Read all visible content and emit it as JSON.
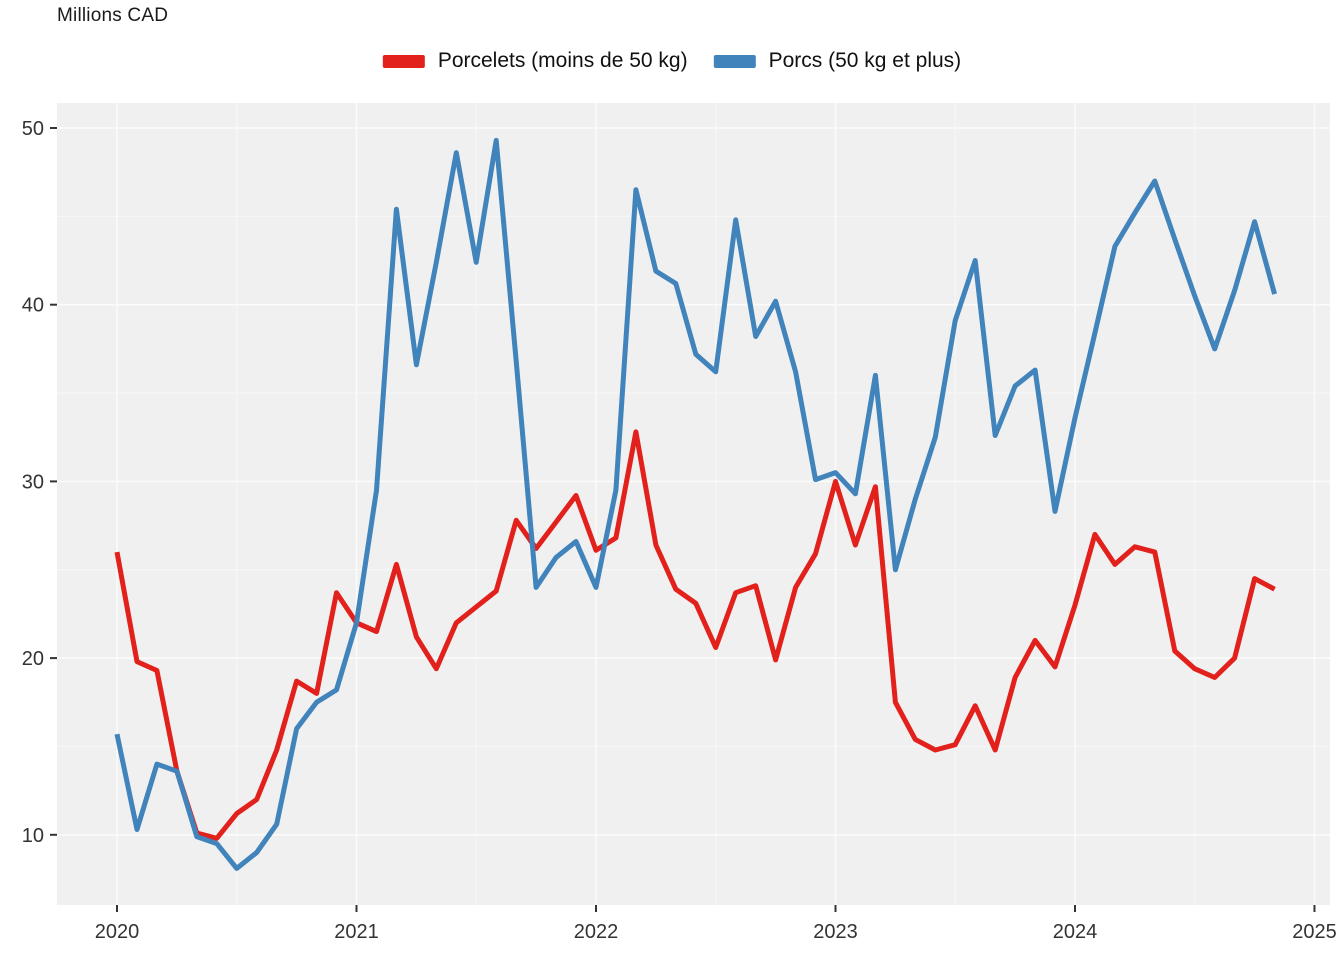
{
  "title": "Millions CAD",
  "legend": [
    {
      "label": "Porcelets (moins de 50 kg)",
      "color": "#E2211C"
    },
    {
      "label": "Porcs (50 kg et plus)",
      "color": "#4183BB"
    }
  ],
  "axes": {
    "yticks": [
      10,
      20,
      30,
      40,
      50
    ],
    "minor_yticks": [
      15,
      25,
      35,
      45
    ],
    "xticks": [
      "2020",
      "2021",
      "2022",
      "2023",
      "2024",
      "2025"
    ]
  },
  "colors": {
    "panel_background": "#F0F0F0",
    "grid_major": "#FBFBFB",
    "grid_minor": "#F7F7F7",
    "axis_text": "#333333",
    "tick_mark": "#333333"
  },
  "chart_data": {
    "type": "line",
    "title": "Millions CAD",
    "xlabel": "",
    "ylabel": "Millions CAD",
    "frequency": "monthly",
    "x_start": "2020-01",
    "x_end": "2024-11",
    "ylim": [
      6,
      51.5
    ],
    "yticks": [
      10,
      20,
      30,
      40,
      50
    ],
    "xtick_years": [
      "2020",
      "2021",
      "2022",
      "2023",
      "2024",
      "2025"
    ],
    "grid": "major+minor",
    "legend_position": "top",
    "series": [
      {
        "name": "Porcelets (moins de 50 kg)",
        "color": "#E2211C",
        "values": [
          26.0,
          19.8,
          19.3,
          13.6,
          10.1,
          9.8,
          11.2,
          12.0,
          14.8,
          18.7,
          18.0,
          23.7,
          22.0,
          21.5,
          25.3,
          21.2,
          19.4,
          22.0,
          22.9,
          23.8,
          27.8,
          26.2,
          27.7,
          29.2,
          26.1,
          26.8,
          32.8,
          26.4,
          23.9,
          23.1,
          20.6,
          23.7,
          24.1,
          19.9,
          24.0,
          25.9,
          30.0,
          26.4,
          29.7,
          17.5,
          15.4,
          14.8,
          15.1,
          17.3,
          14.8,
          18.9,
          21.0,
          19.5,
          23.0,
          27.0,
          25.3,
          26.3,
          26.0,
          20.4,
          19.4,
          18.9,
          20.0,
          24.5,
          23.9
        ]
      },
      {
        "name": "Porcs (50 kg et plus)",
        "color": "#4183BB",
        "values": [
          15.7,
          10.3,
          14.0,
          13.6,
          9.9,
          9.5,
          8.1,
          9.0,
          10.6,
          16.0,
          17.5,
          18.2,
          22.0,
          29.5,
          45.4,
          36.6,
          42.4,
          48.6,
          42.4,
          49.3,
          36.8,
          24.0,
          25.7,
          26.6,
          24.0,
          29.5,
          46.5,
          41.9,
          41.2,
          37.2,
          36.2,
          44.8,
          38.2,
          40.2,
          36.2,
          30.1,
          30.5,
          29.3,
          36.0,
          25.0,
          29.0,
          32.5,
          39.1,
          42.5,
          32.6,
          35.4,
          36.3,
          28.3,
          33.6,
          38.4,
          43.3,
          45.2,
          47.0,
          43.7,
          40.5,
          37.5,
          40.8,
          44.7,
          40.6
        ]
      }
    ]
  }
}
